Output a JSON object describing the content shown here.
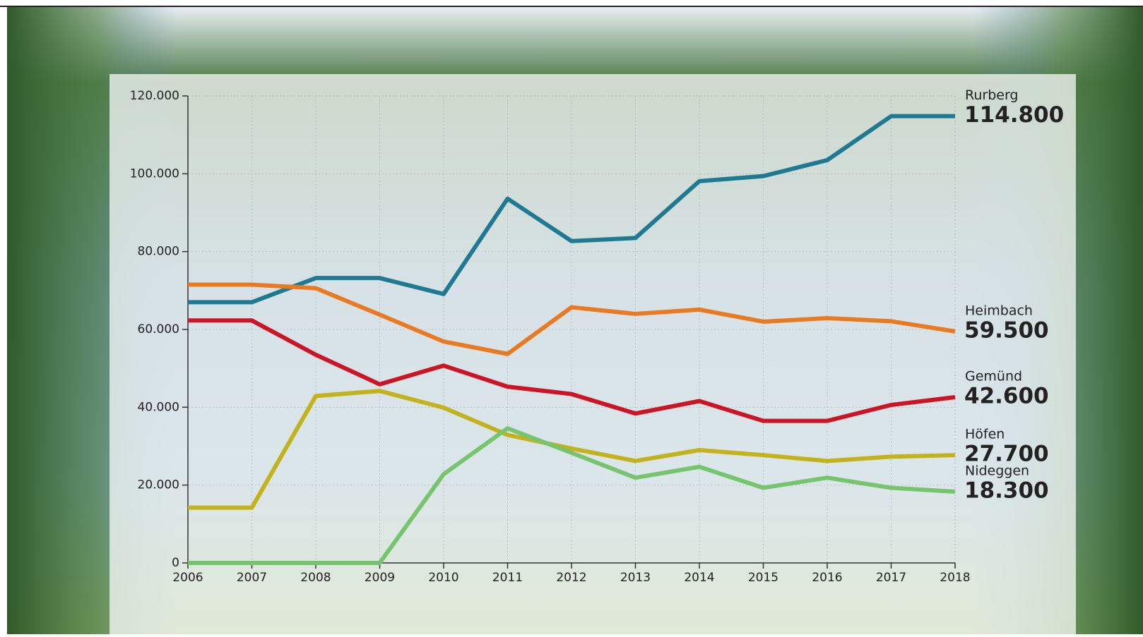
{
  "chart_data": {
    "type": "line",
    "x": [
      2006,
      2007,
      2008,
      2009,
      2010,
      2011,
      2012,
      2013,
      2014,
      2015,
      2016,
      2017,
      2018
    ],
    "xlim": [
      2006,
      2018
    ],
    "xticks": [
      2006,
      2007,
      2008,
      2009,
      2010,
      2011,
      2012,
      2013,
      2014,
      2015,
      2016,
      2017,
      2018
    ],
    "ylim": [
      0,
      120000
    ],
    "yticks": [
      0,
      {
        "value": 20000,
        "label": "20.000"
      },
      {
        "value": 40000,
        "label": "40.000"
      },
      {
        "value": 60000,
        "label": "60.000"
      },
      {
        "value": 80000,
        "label": "80.000"
      },
      {
        "value": 100000,
        "label": "100.000"
      },
      {
        "value": 120000,
        "label": "120.000"
      }
    ],
    "grid": true,
    "series": [
      {
        "name": "Rurberg",
        "color": "#1f7a91",
        "values": [
          67000,
          67000,
          73200,
          73200,
          69100,
          93600,
          82700,
          83500,
          98100,
          99400,
          103500,
          114800,
          114800
        ],
        "value_labels": [
          null,
          null,
          null,
          null,
          null,
          null,
          null,
          null,
          null,
          null,
          null,
          null,
          "114.800"
        ]
      },
      {
        "name": "Heimbach",
        "color": "#ea7a22",
        "values": [
          71500,
          71500,
          70600,
          63800,
          56900,
          53700,
          65700,
          64000,
          65100,
          62000,
          62900,
          62100,
          59500
        ],
        "value_labels": [
          null,
          null,
          null,
          null,
          null,
          null,
          null,
          null,
          null,
          null,
          null,
          null,
          "59.500"
        ]
      },
      {
        "name": "Gemünd",
        "color": "#cc1424",
        "values": [
          62300,
          62300,
          53500,
          45900,
          50700,
          45300,
          43400,
          38400,
          41600,
          36500,
          36500,
          40600,
          42600
        ],
        "value_labels": [
          null,
          null,
          null,
          null,
          null,
          null,
          null,
          null,
          null,
          null,
          null,
          null,
          "42.600"
        ]
      },
      {
        "name": "Höfen",
        "color": "#c2b21c",
        "values": [
          14200,
          14200,
          42900,
          44200,
          39900,
          32900,
          29400,
          26200,
          29000,
          27700,
          26200,
          27300,
          27700
        ],
        "value_labels": [
          null,
          null,
          null,
          null,
          null,
          null,
          null,
          null,
          null,
          null,
          null,
          null,
          "27.700"
        ]
      },
      {
        "name": "Nideggen",
        "color": "#76c46e",
        "values": [
          0,
          0,
          0,
          0,
          22800,
          34600,
          28300,
          21900,
          24700,
          19300,
          21900,
          19300,
          18300
        ],
        "value_labels": [
          null,
          null,
          null,
          null,
          null,
          null,
          null,
          null,
          null,
          null,
          null,
          null,
          "18.300"
        ]
      }
    ]
  }
}
